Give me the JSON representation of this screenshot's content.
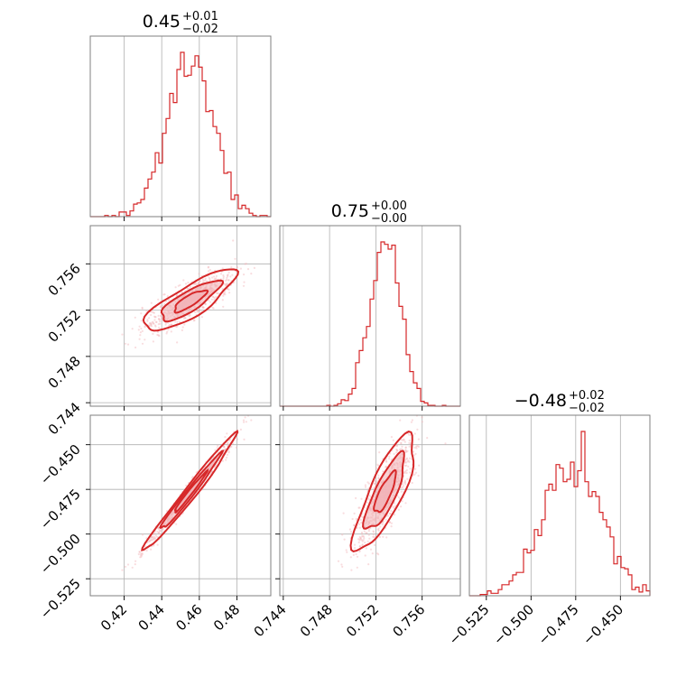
{
  "chart_data": {
    "type": "corner",
    "color": "#d62728",
    "fill_color": "#f2b4b8",
    "grid": true,
    "titles": [
      {
        "value": "0.45",
        "plus": "+0.01",
        "minus": "−0.02"
      },
      {
        "value": "0.75",
        "plus": "+0.00",
        "minus": "−0.00"
      },
      {
        "value": "−0.48",
        "plus": "+0.02",
        "minus": "−0.02"
      }
    ],
    "parameters": [
      {
        "range": [
          0.402,
          0.498
        ],
        "ticks": [
          0.42,
          0.44,
          0.46,
          0.48
        ],
        "tick_labels": [
          "0.42",
          "0.44",
          "0.46",
          "0.48"
        ],
        "mean": 0.455,
        "sd": 0.012
      },
      {
        "range": [
          0.7437,
          0.7593
        ],
        "ticks": [
          0.744,
          0.748,
          0.752,
          0.756
        ],
        "tick_labels": [
          "0.744",
          "0.748",
          "0.752",
          "0.756"
        ],
        "mean": 0.7528,
        "sd": 0.0013
      },
      {
        "range": [
          -0.5345,
          -0.4335
        ],
        "ticks": [
          -0.525,
          -0.5,
          -0.475,
          -0.45
        ],
        "tick_labels": [
          "−0.525",
          "−0.500",
          "−0.475",
          "−0.450"
        ],
        "mean": -0.477,
        "sd": 0.016
      }
    ],
    "panels": {
      "hist_0": {
        "param": 0
      },
      "hist_1": {
        "param": 1
      },
      "hist_2": {
        "param": 2
      },
      "scatter_1_0": {
        "x": 0,
        "y": 1
      },
      "scatter_2_0": {
        "x": 0,
        "y": 2
      },
      "scatter_2_1": {
        "x": 1,
        "y": 2
      }
    }
  }
}
